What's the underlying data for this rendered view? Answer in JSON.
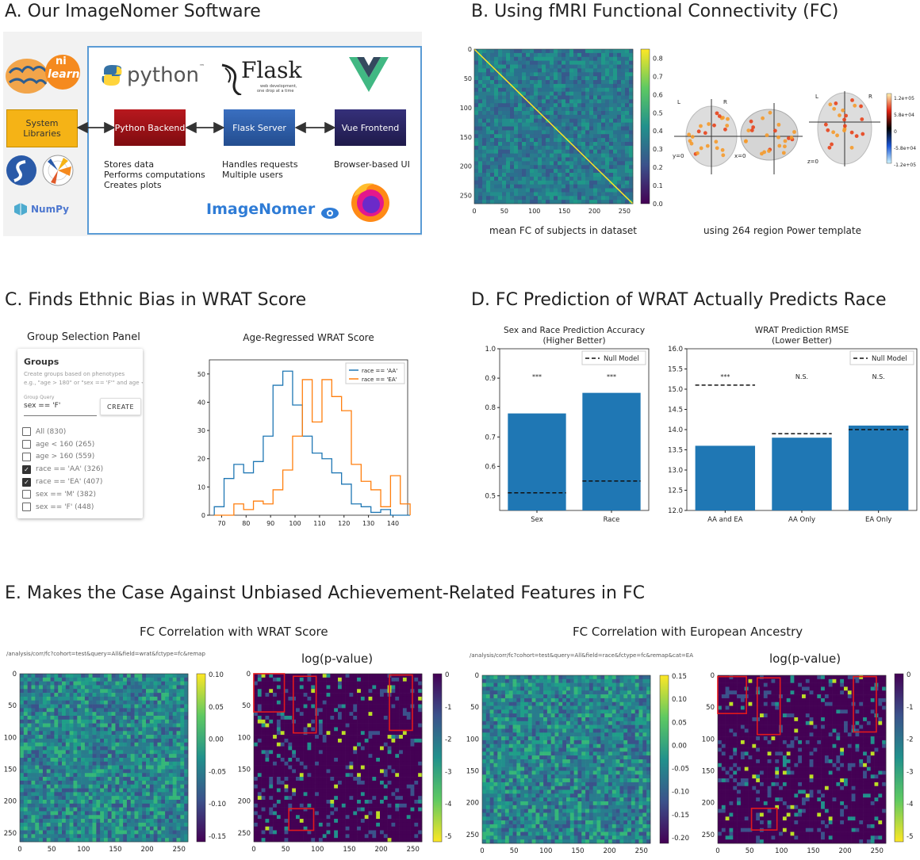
{
  "titles": {
    "a": "A. Our ImageNomer Software",
    "b": "B. Using fMRI Functional Connectivity (FC)",
    "c": "C. Finds Ethnic Bias in WRAT Score",
    "d": "D. FC Prediction of WRAT Actually Predicts Race",
    "e": "E. Makes the Case Against Unbiased Achievement-Related Features in FC"
  },
  "panel_a": {
    "logos": {
      "nilearn_top": "ni",
      "nilearn_bottom": "learn",
      "python": "python",
      "python_tm": "™",
      "flask": "Flask",
      "flask_sub1": "web development,",
      "flask_sub2": "one drop at a time",
      "numpy": "NumPy",
      "imagenomer": "ImageNomer"
    },
    "boxes": {
      "system_libraries": "System\nLibraries",
      "python_backend": "Python Backend",
      "flask_server": "Flask Server",
      "vue_frontend": "Vue Frontend"
    },
    "desc_backend": [
      "Stores data",
      "Performs computations",
      "Creates plots"
    ],
    "desc_flask": [
      "Handles requests",
      "Multiple users"
    ],
    "desc_vue": [
      "Browser-based UI"
    ],
    "colors": {
      "system": "#f5b316",
      "backend": "#a4161a",
      "flask": "#2e5ea8",
      "vue": "#2b2660",
      "border": "#5a9bd5"
    }
  },
  "panel_b": {
    "caption_left": "mean FC of subjects in dataset",
    "caption_right": "using 264 region Power template",
    "matrix_ticks": [
      "0",
      "50",
      "100",
      "150",
      "200",
      "250"
    ],
    "colorbar_ticks": [
      "0.8",
      "0.7",
      "0.6",
      "0.5",
      "0.4",
      "0.3",
      "0.2",
      "0.1",
      "0.0"
    ],
    "brain_labels": {
      "l1": "L",
      "r1": "R",
      "l2": "L",
      "r2": "R",
      "y": "y=0",
      "x": "x=0",
      "z": "z=0"
    },
    "brain_colorbar_ticks": [
      "1.2e+05",
      "5.8e+04",
      "0",
      "-5.8e+04",
      "-1.2e+05"
    ]
  },
  "panel_c": {
    "group_panel_title": "Group Selection Panel",
    "groups_heading": "Groups",
    "groups_help": "Create groups based on phenotypes",
    "groups_help2": "e.g., \"age > 180\" or \"sex == 'F'\" and age < ...",
    "query_label": "Group Query",
    "query_value": "sex == 'F'",
    "create_button": "CREATE",
    "groups": [
      {
        "label": "All (830)",
        "checked": false
      },
      {
        "label": "age < 160 (265)",
        "checked": false
      },
      {
        "label": "age > 160 (559)",
        "checked": false
      },
      {
        "label": "race == 'AA' (326)",
        "checked": true
      },
      {
        "label": "race == 'EA' (407)",
        "checked": true
      },
      {
        "label": "sex == 'M' (382)",
        "checked": false
      },
      {
        "label": "sex == 'F' (448)",
        "checked": false
      }
    ]
  },
  "chart_data": [
    {
      "type": "line",
      "title": "Age-Regressed WRAT Score",
      "xlabel": "",
      "ylabel": "",
      "xlim": [
        65,
        146
      ],
      "ylim": [
        0,
        55
      ],
      "xticks": [
        70,
        80,
        90,
        100,
        110,
        120,
        130,
        140
      ],
      "yticks": [
        0,
        10,
        20,
        30,
        40,
        50
      ],
      "legend": "top-right",
      "bin_edges": [
        67,
        71,
        75,
        79,
        83,
        87,
        91,
        95,
        99,
        103,
        107,
        111,
        115,
        119,
        123,
        127,
        131,
        135,
        139,
        143,
        147
      ],
      "series": [
        {
          "name": "race == 'AA'",
          "color": "#1f77b4",
          "values": [
            3,
            13,
            18,
            15,
            19,
            28,
            46,
            51,
            39,
            28,
            22,
            20,
            15,
            11,
            4,
            3,
            1,
            2,
            0,
            0
          ]
        },
        {
          "name": "race == 'EA'",
          "color": "#ff7f0e",
          "values": [
            0,
            0,
            4,
            2,
            5,
            4,
            9,
            16,
            28,
            48,
            33,
            48,
            42,
            37,
            18,
            12,
            9,
            3,
            14,
            4
          ]
        }
      ]
    },
    {
      "type": "bar",
      "title": "Sex and Race Prediction Accuracy\n(Higher Better)",
      "categories": [
        "Sex",
        "Race"
      ],
      "values": [
        0.78,
        0.85
      ],
      "null_model": [
        0.51,
        0.55
      ],
      "significance": [
        "***",
        "***"
      ],
      "legend_label": "Null Model",
      "ylim": [
        0.45,
        1.0
      ],
      "yticks": [
        "0.5",
        "0.6",
        "0.7",
        "0.8",
        "0.9",
        "1.0"
      ]
    },
    {
      "type": "bar",
      "title": "WRAT Prediction RMSE\n(Lower Better)",
      "categories": [
        "AA and EA",
        "AA Only",
        "EA Only"
      ],
      "values": [
        13.6,
        13.8,
        14.1
      ],
      "null_model": [
        15.1,
        13.9,
        14.0
      ],
      "significance": [
        "***",
        "N.S.",
        "N.S."
      ],
      "legend_label": "Null Model",
      "ylim": [
        12.0,
        16.0
      ],
      "yticks": [
        "12.0",
        "12.5",
        "13.0",
        "13.5",
        "14.0",
        "14.5",
        "15.0",
        "15.5",
        "16.0"
      ]
    }
  ],
  "panel_e": {
    "left_title": "FC Correlation with WRAT Score",
    "right_title": "FC Correlation with European Ancestry",
    "left_url": "/analysis/corr/fc?cohort=test&query=All&field=wrat&fctype=fc&remap",
    "right_url": "/analysis/corr/fc?cohort=test&query=All&field=race&fctype=fc&remap&cat=EA",
    "pval_title": "log(p-value)",
    "matrix_ticks": [
      "0",
      "50",
      "100",
      "150",
      "200",
      "250"
    ],
    "left_cbar": [
      "0.10",
      "0.05",
      "0.00",
      "-0.05",
      "-0.10",
      "-0.15"
    ],
    "right_cbar": [
      "0.15",
      "0.10",
      "0.05",
      "0.00",
      "-0.05",
      "-0.10",
      "-0.15",
      "-0.20"
    ],
    "pval_cbar": [
      "0",
      "-1",
      "-2",
      "-3",
      "-4",
      "-5"
    ]
  }
}
